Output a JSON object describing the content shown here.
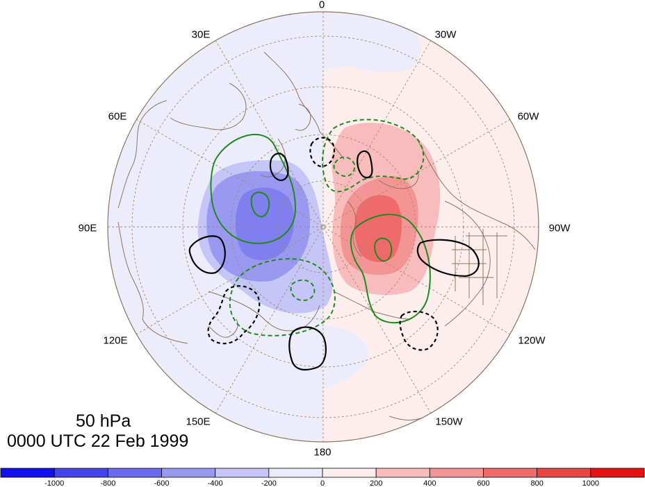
{
  "map": {
    "projection": "north-polar-stereographic",
    "level": "50 hPa",
    "time": "0000 UTC 22 Feb 1999",
    "longitude_labels": {
      "0": "0",
      "30e": "30E",
      "30w": "30W",
      "60e": "60E",
      "60w": "60W",
      "90e": "90E",
      "90w": "90W",
      "120e": "120E",
      "120w": "120W",
      "150e": "150E",
      "150w": "150W",
      "180": "180"
    },
    "colors": {
      "coastline": "#8b7560",
      "grid": "#a9896a",
      "positive_contour": "#000000",
      "negative_contour": "#000000",
      "secondary_contour": "#1e8a1e"
    }
  },
  "colorbar": {
    "labels": [
      "-1000",
      "-800",
      "-600",
      "-400",
      "-200",
      "0",
      "200",
      "400",
      "600",
      "800",
      "1000"
    ],
    "colors": [
      "#1111ee",
      "#4444ee",
      "#6b6bee",
      "#9999f2",
      "#c5c5f8",
      "#ececfb",
      "#fdeeee",
      "#f9bcbc",
      "#f49595",
      "#ef6b6b",
      "#ea4646",
      "#e81111"
    ]
  }
}
